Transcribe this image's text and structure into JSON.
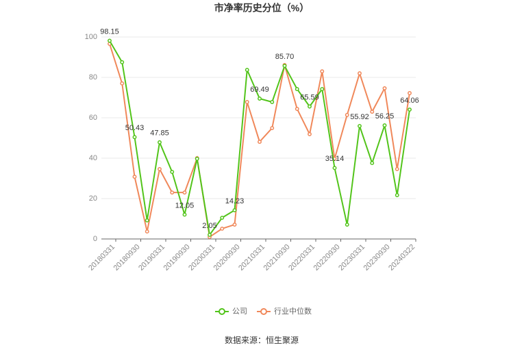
{
  "chart_data": {
    "type": "line",
    "title": "市净率历史分位（%）",
    "source": "数据来源：恒生聚源",
    "categories": [
      "20180331",
      null,
      "20180930",
      null,
      "20190331",
      null,
      "20190930",
      null,
      "20200331",
      null,
      "20200930",
      null,
      "20210331",
      null,
      "20210930",
      null,
      "20220331",
      null,
      "20220930",
      null,
      "20230331",
      null,
      "20230930",
      null,
      "20240322"
    ],
    "series": [
      {
        "name": "公司",
        "color": "#52c41a",
        "values": [
          98.15,
          87.5,
          50.43,
          9.2,
          47.85,
          33.2,
          12.05,
          39.7,
          2.05,
          10.5,
          14.23,
          83.7,
          69.49,
          67.8,
          85.7,
          74.2,
          65.59,
          74.2,
          35.14,
          7.1,
          55.92,
          37.6,
          56.25,
          21.7,
          64.06
        ],
        "value_labels": [
          "98.15",
          null,
          "50.43",
          null,
          "47.85",
          null,
          "12.05",
          null,
          "2.05",
          null,
          "14.23",
          null,
          "69.49",
          null,
          "85.70",
          null,
          "65.59",
          null,
          "35.14",
          null,
          "55.92",
          null,
          "56.25",
          null,
          "64.06"
        ]
      },
      {
        "name": "行业中位数",
        "color": "#f0885a",
        "values": [
          96.6,
          77,
          30.8,
          3.7,
          34.6,
          23,
          23,
          40,
          1,
          5.1,
          7.1,
          67.8,
          48.1,
          54.9,
          86.1,
          64.4,
          51.9,
          83,
          39.7,
          61.4,
          82,
          63,
          74.6,
          34.6,
          72.2
        ]
      }
    ],
    "ylim": [
      0,
      100
    ],
    "yticks": [
      0,
      20,
      40,
      60,
      80,
      100
    ],
    "grid": true
  }
}
